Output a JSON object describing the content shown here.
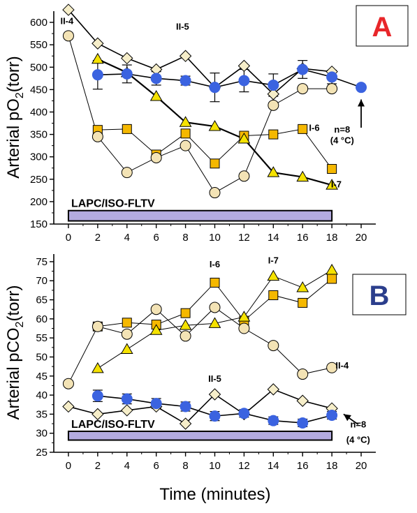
{
  "colors": {
    "triangle": "#f5e200",
    "square": "#f5b800",
    "circle": "#f3e3b5",
    "diamond": "#f6eec9",
    "blue": "#3b63e0",
    "bar": "#b3abe0",
    "letterA": "#e8262a",
    "letterB": "#2b3e8c"
  },
  "xlabel": "Time (minutes)",
  "chart_data": [
    {
      "type": "line",
      "panel": "A",
      "ylabel": "Arterial pO2(torr)",
      "ylabel_main": "Arterial pO",
      "ylabel_sub": "2",
      "ylabel_tail": "(torr)",
      "x_ticks": [
        0,
        2,
        4,
        6,
        8,
        10,
        12,
        14,
        16,
        18,
        20
      ],
      "y_ticks": [
        150,
        200,
        250,
        300,
        350,
        400,
        450,
        500,
        550,
        600
      ],
      "xlim": [
        -1,
        21
      ],
      "ylim": [
        150,
        625
      ],
      "bar_text": "LAPC/ISO-FLTV",
      "bar_range": [
        0,
        18
      ],
      "bar_y": [
        157,
        180
      ],
      "series": [
        {
          "name": "II-4",
          "marker": "circle",
          "color_key": "circle",
          "line_width": 1,
          "x": [
            0,
            2,
            4,
            6,
            8,
            10,
            12,
            14,
            16,
            18
          ],
          "y": [
            570,
            345,
            265,
            298,
            325,
            220,
            257,
            415,
            452,
            452
          ]
        },
        {
          "name": "II-5",
          "marker": "diamond",
          "color_key": "diamond",
          "line_width": 1.6,
          "x": [
            0,
            2,
            4,
            6,
            8,
            10,
            12,
            14,
            16,
            18
          ],
          "y": [
            628,
            553,
            520,
            495,
            525,
            455,
            503,
            440,
            497,
            490
          ]
        },
        {
          "name": "I-6",
          "marker": "square",
          "color_key": "square",
          "line_width": 1,
          "x": [
            2,
            4,
            6,
            8,
            10,
            12,
            14,
            16,
            18
          ],
          "y": [
            360,
            362,
            305,
            352,
            285,
            347,
            350,
            362,
            273
          ]
        },
        {
          "name": "I-7",
          "marker": "triangle",
          "color_key": "triangle",
          "line_width": 2.2,
          "x": [
            2,
            4,
            6,
            8,
            10,
            12,
            14,
            16,
            18
          ],
          "y": [
            518,
            488,
            435,
            377,
            368,
            340,
            265,
            255,
            237
          ]
        },
        {
          "name": "n=8",
          "marker": "blue",
          "color_key": "blue",
          "line_width": 1.6,
          "x": [
            2,
            4,
            6,
            8,
            10,
            12,
            14,
            16,
            18,
            20
          ],
          "y": [
            483,
            485,
            475,
            470,
            455,
            470,
            460,
            495,
            478,
            455
          ],
          "err": [
            32,
            20,
            15,
            10,
            32,
            25,
            25,
            20,
            15,
            0
          ]
        }
      ],
      "annotations": [
        {
          "text": "II-4",
          "x": -0.1,
          "y": 596
        },
        {
          "text": "II-5",
          "x": 7.8,
          "y": 584
        },
        {
          "text": "I-6",
          "x": 16.8,
          "y": 358
        },
        {
          "text": "I-7",
          "x": 18.3,
          "y": 232
        },
        {
          "text": "n=8",
          "x": 18.7,
          "y": 354
        },
        {
          "text": "(4 °C)",
          "x": 18.7,
          "y": 330
        }
      ],
      "arrow": {
        "from": [
          20,
          365
        ],
        "to": [
          20,
          428
        ]
      }
    },
    {
      "type": "line",
      "panel": "B",
      "ylabel": "Arterial pCO2(torr)",
      "ylabel_main": "Arterial pCO",
      "ylabel_sub": "2",
      "ylabel_tail": "(torr)",
      "x_ticks": [
        0,
        2,
        4,
        6,
        8,
        10,
        12,
        14,
        16,
        18,
        20
      ],
      "y_ticks": [
        25,
        30,
        35,
        40,
        45,
        50,
        55,
        60,
        65,
        70,
        75
      ],
      "xlim": [
        -1,
        21
      ],
      "ylim": [
        25,
        77
      ],
      "bar_text": "LAPC/ISO-FLTV",
      "bar_range": [
        0,
        18
      ],
      "bar_y": [
        28.2,
        30.5
      ],
      "series": [
        {
          "name": "II-4",
          "marker": "circle",
          "color_key": "circle",
          "line_width": 1,
          "x": [
            0,
            2,
            4,
            6,
            8,
            10,
            12,
            14,
            16,
            18
          ],
          "y": [
            43,
            58,
            56,
            62.5,
            55.5,
            63,
            57.5,
            53,
            45.5,
            47.2
          ]
        },
        {
          "name": "II-5",
          "marker": "diamond",
          "color_key": "diamond",
          "line_width": 1.6,
          "x": [
            0,
            2,
            4,
            6,
            8,
            10,
            12,
            14,
            16,
            18
          ],
          "y": [
            37,
            35,
            36,
            37,
            32.5,
            40.2,
            35,
            41.5,
            38.5,
            36.5
          ]
        },
        {
          "name": "I-6",
          "marker": "square",
          "color_key": "square",
          "line_width": 1,
          "x": [
            2,
            4,
            6,
            8,
            10,
            12,
            14,
            16,
            18
          ],
          "y": [
            58,
            59,
            58.5,
            61.5,
            69.5,
            59.5,
            66.2,
            64.2,
            70.5
          ]
        },
        {
          "name": "I-7",
          "marker": "triangle",
          "color_key": "triangle",
          "line_width": 1,
          "x": [
            2,
            4,
            6,
            8,
            10,
            12,
            14,
            16,
            18
          ],
          "y": [
            47,
            52,
            57,
            58.3,
            58.8,
            60.5,
            71.2,
            68.2,
            72.8
          ]
        },
        {
          "name": "n=8",
          "marker": "blue",
          "color_key": "blue",
          "line_width": 1.6,
          "x": [
            2,
            4,
            6,
            8,
            10,
            12,
            14,
            16,
            18
          ],
          "y": [
            39.8,
            39,
            37.8,
            37,
            34.5,
            35.2,
            33.3,
            32.7,
            34.7
          ],
          "err": [
            1.5,
            1.3,
            1.3,
            1.2,
            1.2,
            1.0,
            1.0,
            1.0,
            1.0
          ]
        }
      ],
      "annotations": [
        {
          "text": "I-6",
          "x": 10.0,
          "y": 73.5
        },
        {
          "text": "I-7",
          "x": 14.0,
          "y": 74.5
        },
        {
          "text": "II-4",
          "x": 18.7,
          "y": 47
        },
        {
          "text": "II-5",
          "x": 10.0,
          "y": 43.5
        },
        {
          "text": "n=8",
          "x": 19.8,
          "y": 31.5
        },
        {
          "text": "(4 °C)",
          "x": 19.8,
          "y": 27.5
        }
      ],
      "arrow": {
        "from": [
          19.8,
          32.3
        ],
        "to": [
          18.8,
          35.0
        ]
      }
    }
  ],
  "panel_letters": [
    "A",
    "B"
  ]
}
